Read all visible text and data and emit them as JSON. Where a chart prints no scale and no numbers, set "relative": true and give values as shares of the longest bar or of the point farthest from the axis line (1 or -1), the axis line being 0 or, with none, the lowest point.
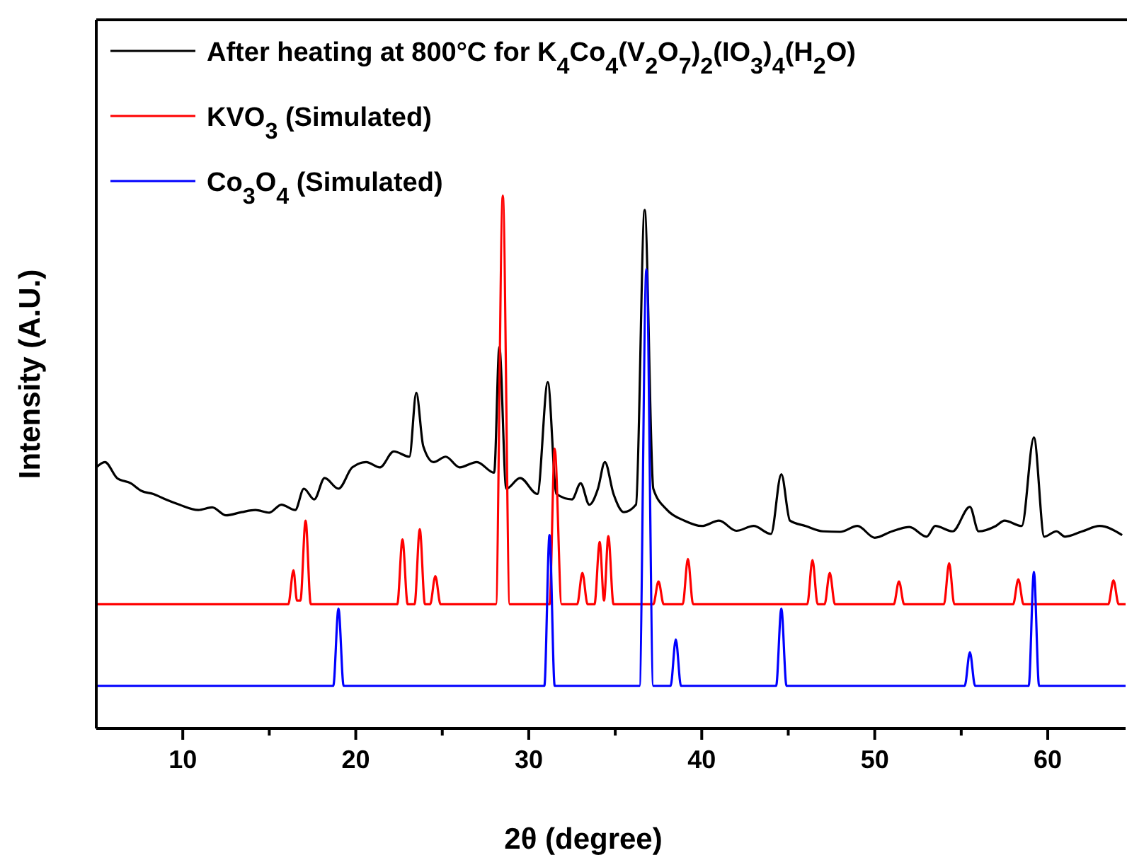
{
  "chart_data": {
    "type": "line",
    "relative": true,
    "xlabel": "2θ (degree)",
    "ylabel": "Intensity (A.U.)",
    "xlim": [
      5,
      64.5
    ],
    "xticks": [
      10,
      {
        "value": 15,
        "label": null
      },
      20,
      {
        "value": 25,
        "label": null
      },
      30,
      {
        "value": 35,
        "label": null
      },
      40,
      {
        "value": 45,
        "label": null
      },
      50,
      {
        "value": 55,
        "label": null
      },
      60
    ],
    "legend": "top left",
    "grid": false,
    "line_style": "solid",
    "series": [
      {
        "name": "After heating at 800°C for K$_{4}$Co$_{4}$(V$_{2}$O$_{7}$)$_{2}$(IO$_{3}$)$_{4}$(H$_{2}$O)",
        "color": "#000000",
        "x": [
          5,
          5.5,
          6.2,
          7,
          7.6,
          8.3,
          9,
          9.8,
          10.9,
          11.7,
          12.5,
          13.4,
          14.2,
          15,
          15.7,
          16.5,
          17,
          17.6,
          18.2,
          19,
          19.8,
          20.6,
          21.4,
          22.2,
          23.1,
          23.5,
          23.9,
          24.5,
          25.2,
          26,
          27,
          28,
          28.3,
          28.7,
          29.5,
          30.5,
          31.1,
          31.6,
          32.5,
          33,
          33.5,
          34,
          34.4,
          34.9,
          35.5,
          36.2,
          36.7,
          37.2,
          38,
          39,
          40,
          41,
          42,
          43,
          44,
          44.6,
          45.1,
          46,
          47,
          48,
          49,
          50,
          51,
          52,
          53,
          53.5,
          54.5,
          55.5,
          56,
          57,
          57.5,
          58.5,
          59.2,
          59.8,
          60.5,
          61,
          62,
          63,
          64.3
        ],
        "values": [
          0.49,
          0.5,
          0.47,
          0.46,
          0.446,
          0.44,
          0.43,
          0.42,
          0.41,
          0.415,
          0.4,
          0.406,
          0.41,
          0.405,
          0.42,
          0.41,
          0.45,
          0.43,
          0.47,
          0.45,
          0.49,
          0.5,
          0.49,
          0.52,
          0.51,
          0.63,
          0.53,
          0.5,
          0.51,
          0.49,
          0.5,
          0.48,
          0.716,
          0.45,
          0.47,
          0.44,
          0.65,
          0.44,
          0.43,
          0.46,
          0.42,
          0.45,
          0.5,
          0.44,
          0.406,
          0.42,
          0.973,
          0.45,
          0.41,
          0.39,
          0.38,
          0.39,
          0.371,
          0.38,
          0.365,
          0.477,
          0.39,
          0.38,
          0.37,
          0.369,
          0.38,
          0.358,
          0.37,
          0.378,
          0.36,
          0.38,
          0.37,
          0.416,
          0.37,
          0.38,
          0.39,
          0.38,
          0.546,
          0.36,
          0.37,
          0.36,
          0.37,
          0.38,
          0.363
        ]
      },
      {
        "name": "KVO$_{3}$ (Simulated)",
        "color": "#ff0000",
        "x": [
          5,
          16.1,
          16.4,
          16.6,
          16.8,
          17.1,
          17.4,
          22.4,
          22.7,
          23,
          23.4,
          23.7,
          24,
          24.3,
          24.6,
          24.9,
          28.1,
          28.5,
          28.9,
          31.2,
          31.5,
          31.9,
          32.8,
          33.1,
          33.4,
          33.8,
          34.1,
          34.35,
          34.6,
          34.9,
          37.2,
          37.5,
          37.8,
          38.9,
          39.2,
          39.5,
          46.1,
          46.4,
          46.7,
          47.1,
          47.4,
          47.7,
          51.1,
          51.4,
          51.7,
          54,
          54.3,
          54.6,
          58,
          58.3,
          58.6,
          63.5,
          63.8,
          64.1,
          64.5
        ],
        "values": [
          0.233,
          0.233,
          0.297,
          0.24,
          0.24,
          0.39,
          0.233,
          0.233,
          0.355,
          0.233,
          0.233,
          0.374,
          0.233,
          0.233,
          0.286,
          0.233,
          0.233,
          1,
          0.233,
          0.233,
          0.525,
          0.233,
          0.233,
          0.292,
          0.233,
          0.233,
          0.35,
          0.24,
          0.361,
          0.233,
          0.233,
          0.276,
          0.233,
          0.233,
          0.318,
          0.233,
          0.233,
          0.316,
          0.233,
          0.233,
          0.292,
          0.233,
          0.233,
          0.276,
          0.233,
          0.233,
          0.31,
          0.233,
          0.233,
          0.28,
          0.233,
          0.233,
          0.278,
          0.233,
          0.233
        ]
      },
      {
        "name": "Co$_{3}$O$_{4}$ (Simulated)",
        "color": "#0000ff",
        "x": [
          5,
          18.7,
          19,
          19.3,
          30.9,
          31.2,
          31.5,
          36.4,
          36.8,
          37.2,
          38.2,
          38.5,
          38.8,
          44.3,
          44.6,
          44.9,
          55.2,
          55.5,
          55.8,
          58.9,
          59.2,
          59.5,
          64.5
        ],
        "values": [
          0.08,
          0.08,
          0.225,
          0.08,
          0.08,
          0.363,
          0.08,
          0.08,
          0.862,
          0.08,
          0.08,
          0.167,
          0.08,
          0.08,
          0.225,
          0.08,
          0.08,
          0.143,
          0.08,
          0.08,
          0.294,
          0.08,
          0.08
        ]
      }
    ]
  }
}
